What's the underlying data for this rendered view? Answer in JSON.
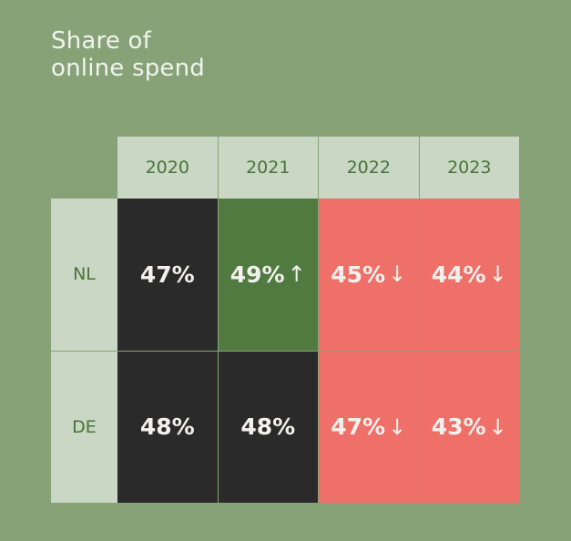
{
  "chart_data": {
    "type": "table",
    "title_lines": [
      "Share of",
      "online spend"
    ],
    "columns": [
      "2020",
      "2021",
      "2022",
      "2023"
    ],
    "rows": [
      {
        "label": "NL",
        "cells": [
          {
            "value": "47%",
            "trend": "none",
            "arrow": ""
          },
          {
            "value": "49%",
            "trend": "up",
            "arrow": "↑"
          },
          {
            "value": "45%",
            "trend": "down",
            "arrow": "↓"
          },
          {
            "value": "44%",
            "trend": "down",
            "arrow": "↓"
          }
        ]
      },
      {
        "label": "DE",
        "cells": [
          {
            "value": "48%",
            "trend": "none",
            "arrow": ""
          },
          {
            "value": "48%",
            "trend": "none",
            "arrow": ""
          },
          {
            "value": "47%",
            "trend": "down",
            "arrow": "↓"
          },
          {
            "value": "43%",
            "trend": "down",
            "arrow": "↓"
          }
        ]
      }
    ],
    "colors": {
      "background": "#87a277",
      "header": "#c9d7c4",
      "neutral": "#2a2a2a",
      "up": "#517a40",
      "down": "#ef6f69"
    }
  }
}
